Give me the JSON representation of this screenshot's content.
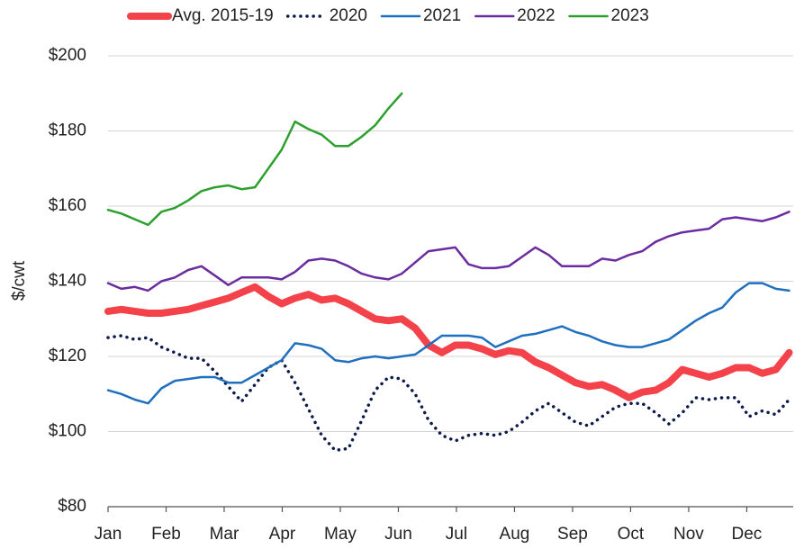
{
  "chart_data": {
    "type": "line",
    "y_label": "$/cwt",
    "x": [
      0,
      0.23,
      0.46,
      0.69,
      0.92,
      1.15,
      1.38,
      1.61,
      1.84,
      2.07,
      2.3,
      2.53,
      2.76,
      2.99,
      3.22,
      3.45,
      3.68,
      3.91,
      4.14,
      4.37,
      4.6,
      4.83,
      5.06,
      5.29,
      5.52,
      5.75,
      5.98,
      6.21,
      6.44,
      6.67,
      6.9,
      7.13,
      7.36,
      7.59,
      7.82,
      8.05,
      8.28,
      8.51,
      8.74,
      8.97,
      9.2,
      9.43,
      9.66,
      9.89,
      10.12,
      10.35,
      10.58,
      10.81,
      11.04,
      11.27,
      11.5,
      11.73
    ],
    "xlim": [
      0,
      11.8
    ],
    "xticks": [
      {
        "value": 0,
        "label": "Jan"
      },
      {
        "value": 1,
        "label": "Feb"
      },
      {
        "value": 2,
        "label": "Mar"
      },
      {
        "value": 3,
        "label": "Apr"
      },
      {
        "value": 4,
        "label": "May"
      },
      {
        "value": 5,
        "label": "Jun"
      },
      {
        "value": 6,
        "label": "Jul"
      },
      {
        "value": 7,
        "label": "Aug"
      },
      {
        "value": 8,
        "label": "Sep"
      },
      {
        "value": 9,
        "label": "Oct"
      },
      {
        "value": 10,
        "label": "Nov"
      },
      {
        "value": 11,
        "label": "Dec"
      }
    ],
    "ylim": [
      80,
      200
    ],
    "yticks": [
      {
        "value": 80,
        "label": "$80"
      },
      {
        "value": 100,
        "label": "$100"
      },
      {
        "value": 120,
        "label": "$120"
      },
      {
        "value": 140,
        "label": "$140"
      },
      {
        "value": 160,
        "label": "$160"
      },
      {
        "value": 180,
        "label": "$180"
      },
      {
        "value": 200,
        "label": "$200"
      }
    ],
    "grid": true,
    "legend": "top",
    "series": [
      {
        "name": "Avg. 2015-19",
        "color": "#f4424b",
        "line_width": 8,
        "dash": "solid",
        "values": [
          132,
          132.5,
          132,
          131.5,
          131.5,
          132,
          132.5,
          133.5,
          134.5,
          135.5,
          137,
          138.5,
          136,
          134,
          135.5,
          136.5,
          135,
          135.5,
          134,
          132,
          130,
          129.5,
          130,
          127.5,
          123,
          121,
          123,
          123,
          122,
          120.5,
          121.5,
          121,
          118.5,
          117,
          115,
          113,
          112,
          112.5,
          111,
          109,
          110.5,
          111,
          113,
          116.5,
          115.5,
          114.5,
          115.5,
          117,
          117,
          115.5,
          116.5,
          121
        ]
      },
      {
        "name": "2020",
        "color": "#0d1a4a",
        "line_width": 3.5,
        "dash": "dotted",
        "values": [
          125,
          125.5,
          124.5,
          125,
          122.5,
          121,
          119.5,
          119.5,
          116,
          112,
          108,
          112.5,
          117,
          119,
          113,
          106,
          99,
          95,
          95.5,
          103,
          111,
          114.5,
          114,
          110,
          103,
          99,
          97.5,
          99,
          99.5,
          99,
          100,
          102.5,
          105.5,
          107.5,
          105,
          102.5,
          101.5,
          104,
          106.5,
          107.5,
          107.5,
          105,
          102,
          105,
          109,
          108.5,
          109,
          109,
          104,
          105.5,
          104.5,
          108.5
        ]
      },
      {
        "name": "2021",
        "color": "#1f6fbf",
        "line_width": 2.5,
        "dash": "solid",
        "values": [
          111,
          110,
          108.5,
          107.5,
          111.5,
          113.5,
          114,
          114.5,
          114.5,
          113,
          113,
          115,
          117,
          119,
          123.5,
          123,
          122,
          119,
          118.5,
          119.5,
          120,
          119.5,
          120,
          120.5,
          123,
          125.5,
          125.5,
          125.5,
          125,
          122.5,
          124,
          125.5,
          126,
          127,
          128,
          126.5,
          125.5,
          124,
          123,
          122.5,
          122.5,
          123.5,
          124.5,
          127,
          129.5,
          131.5,
          133,
          137,
          139.5,
          139.5,
          138,
          137.5
        ]
      },
      {
        "name": "2022",
        "color": "#6a2c9e",
        "line_width": 2.5,
        "dash": "solid",
        "values": [
          139.5,
          138,
          138.5,
          137.5,
          140,
          141,
          143,
          144,
          141.5,
          139,
          141,
          141,
          141,
          140.5,
          142.5,
          145.5,
          146,
          145.5,
          144,
          142,
          141,
          140.5,
          142,
          145,
          148,
          148.5,
          149,
          144.5,
          143.5,
          143.5,
          144,
          146.5,
          149,
          147,
          144,
          144,
          144,
          146,
          145.5,
          147,
          148,
          150.5,
          152,
          153,
          153.5,
          154,
          156.5,
          157,
          156.5,
          156,
          157,
          158.5
        ]
      },
      {
        "name": "2023",
        "color": "#2ca02c",
        "line_width": 2.5,
        "dash": "solid",
        "values": [
          159,
          158,
          156.5,
          155,
          158.5,
          159.5,
          161.5,
          164,
          165,
          165.5,
          164.5,
          165,
          170,
          175,
          182.5,
          180.5,
          179,
          176,
          176,
          178.5,
          181.5,
          186,
          190,
          null,
          null,
          null,
          null,
          null,
          null,
          null,
          null,
          null,
          null,
          null,
          null,
          null,
          null,
          null,
          null,
          null,
          null,
          null,
          null,
          null,
          null,
          null,
          null,
          null,
          null,
          null,
          null,
          null
        ]
      }
    ]
  }
}
